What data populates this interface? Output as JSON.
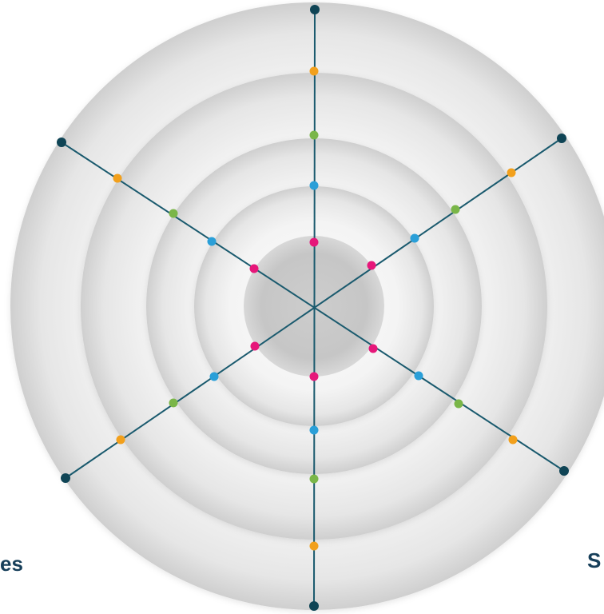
{
  "labels": {
    "bottom_left": "es",
    "bottom_right": "S"
  },
  "colors": {
    "axis": "#1a5a6e",
    "tip": "#0f4455",
    "ring_outer": "#cfcfcf",
    "ring_inner": "#fbfbfb",
    "center": "#c4c4c4",
    "label": "#173f5a",
    "marker_levels": [
      "#e6177a",
      "#2a9fd8",
      "#7ab648",
      "#f2a01c"
    ]
  },
  "diagram": {
    "axis_count": 6,
    "ring_count": 4,
    "marker_levels": 4
  }
}
